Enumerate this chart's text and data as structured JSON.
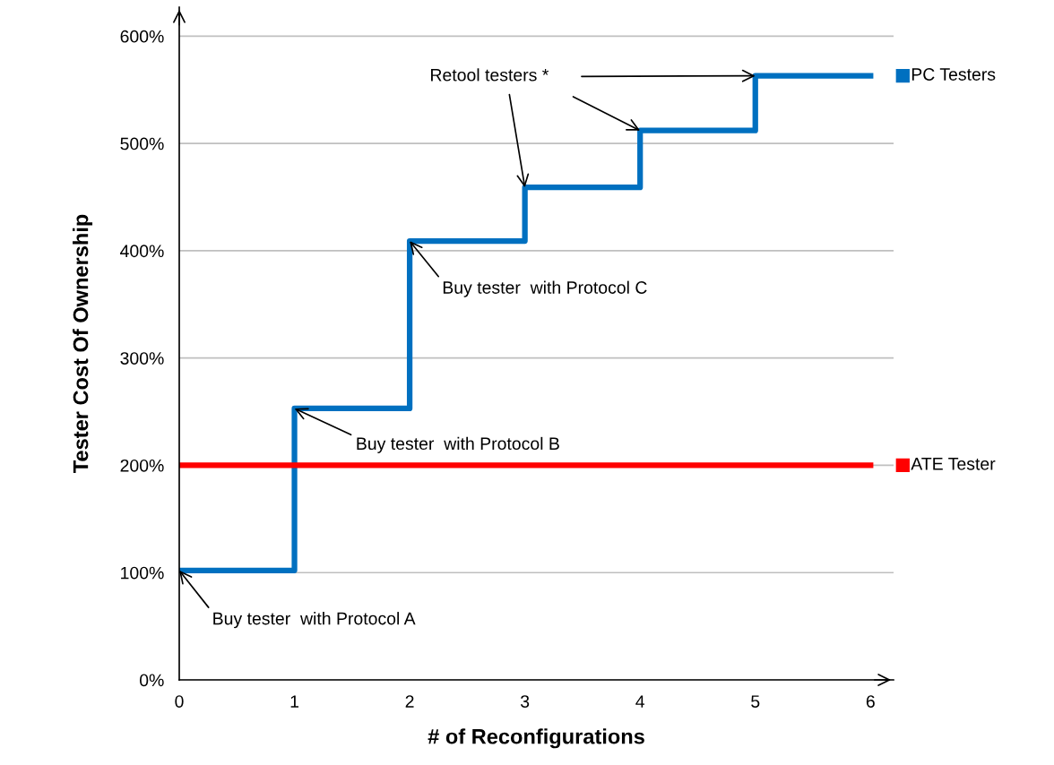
{
  "chart_data": {
    "type": "step",
    "xlabel": "# of Reconfigurations",
    "ylabel": "Tester Cost Of Ownership",
    "xlim": [
      0,
      6.2
    ],
    "ylim": [
      0,
      627
    ],
    "xticks": [
      0,
      1,
      2,
      3,
      4,
      5,
      6
    ],
    "yticks": [
      {
        "value": 0,
        "label": "0%"
      },
      {
        "value": 100,
        "label": "100%"
      },
      {
        "value": 200,
        "label": "200%"
      },
      {
        "value": 300,
        "label": "300%"
      },
      {
        "value": 400,
        "label": "400%"
      },
      {
        "value": 500,
        "label": "500%"
      },
      {
        "value": 600,
        "label": "600%"
      }
    ],
    "grid": "y",
    "legend": "right",
    "series": [
      {
        "name": "PC Testers",
        "color": "#0070c0",
        "x": [
          0,
          1,
          2,
          3,
          4,
          5,
          6
        ],
        "values": [
          102,
          253,
          409,
          459,
          512,
          563,
          563
        ]
      },
      {
        "name": "ATE Tester",
        "type": "line",
        "color": "#ff0000",
        "x": [
          0,
          6
        ],
        "values": [
          200,
          200
        ]
      }
    ],
    "annotations": [
      {
        "text": "Buy tester  with Protocol A",
        "x": 0,
        "y": 102
      },
      {
        "text": "Buy tester  with Protocol B",
        "x": 1,
        "y": 253
      },
      {
        "text": "Buy tester  with Protocol C",
        "x": 2,
        "y": 409
      },
      {
        "text": "Retool testers *",
        "x": 3,
        "y": 459
      }
    ]
  }
}
